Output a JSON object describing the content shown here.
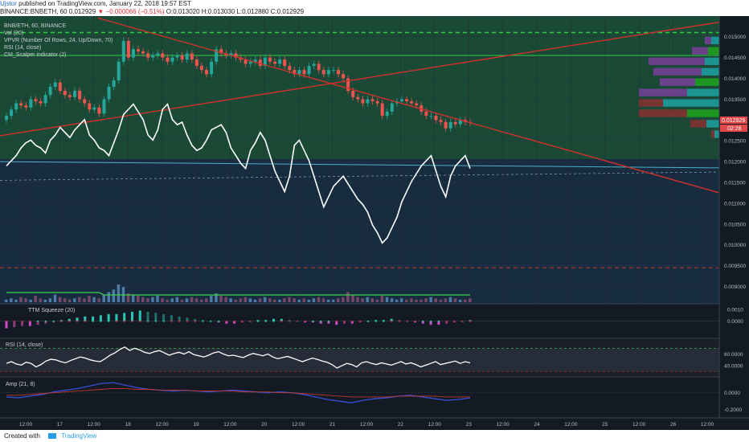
{
  "header": {
    "author": "Ujstor",
    "published_text": "published on TradingView.com, January 22, 2018 19:57 EST",
    "symbol_line_prefix": "BINANCE:BNBETH, 60",
    "last": "0.012929",
    "change": "−0.000066 (−0.51%)",
    "ohlc": "O:0.013020 H:0.013030 L:0.012880 C:0.012929"
  },
  "legend": {
    "symbol": "BNB/ETH, 60, BINANCE",
    "vol": "Vol (20)",
    "vpvr": "VPVR (Number Of Rows, 24, Up/Down, 70)",
    "rsi": "RSI (14, close)",
    "scalper": "CM_Scalper indicator (2)",
    "ttm": "TTM Squeeze (20)",
    "rsi2": "RSI (14, close)",
    "amp": "Amp (21, 8)"
  },
  "price_badges": {
    "last": "0.012929",
    "timer": "02:28"
  },
  "footer": {
    "created_with": "Created with",
    "brand": "TradingView"
  },
  "colors": {
    "candle_up": "#26a69a",
    "candle_down": "#ef5350",
    "rsi_line": "#ffffff",
    "trendline": "#d0312d",
    "dashed_level": "#2ecc40",
    "vpvr_teal": "#1d9c9c",
    "vpvr_purple": "#7b3f9a",
    "vpvr_green": "#1fa01f",
    "panel_bg": "#1c2430"
  },
  "chart_data": [
    {
      "type": "candlestick",
      "title": "BNB/ETH, 60, BINANCE",
      "x_ticks": [
        "12:00",
        "17",
        "12:00",
        "18",
        "12:00",
        "19",
        "12:00",
        "20",
        "12:00",
        "21",
        "12:00",
        "22",
        "12:00",
        "23",
        "12:00",
        "24",
        "12:00",
        "25",
        "12:00",
        "26",
        "12:00"
      ],
      "y_ticks": [
        "0.015000",
        "0.014500",
        "0.014000",
        "0.013500",
        "0.013000",
        "0.012500",
        "0.012000",
        "0.011500",
        "0.011000",
        "0.010500",
        "0.010000",
        "0.009500",
        "0.009000"
      ],
      "ylim": [
        0.0087,
        0.0154
      ],
      "close": [
        0.0131,
        0.01325,
        0.0134,
        0.01335,
        0.0133,
        0.0135,
        0.01345,
        0.0134,
        0.0136,
        0.0138,
        0.0139,
        0.0137,
        0.0136,
        0.01355,
        0.0137,
        0.0135,
        0.0134,
        0.01325,
        0.0133,
        0.01315,
        0.0135,
        0.0138,
        0.01395,
        0.0144,
        0.0149,
        0.0145,
        0.0147,
        0.01465,
        0.0146,
        0.0145,
        0.01455,
        0.0146,
        0.0145,
        0.0144,
        0.0145,
        0.01455,
        0.01445,
        0.0146,
        0.01445,
        0.0143,
        0.0142,
        0.0141,
        0.0144,
        0.0147,
        0.0146,
        0.01455,
        0.0146,
        0.0145,
        0.01445,
        0.01435,
        0.0144,
        0.01445,
        0.0143,
        0.0145,
        0.0144,
        0.01435,
        0.01445,
        0.0143,
        0.0142,
        0.0141,
        0.0142,
        0.0141,
        0.0143,
        0.01435,
        0.0142,
        0.0141,
        0.0142,
        0.0142,
        0.0141,
        0.014,
        0.0137,
        0.01355,
        0.0135,
        0.0134,
        0.0135,
        0.01345,
        0.0134,
        0.0131,
        0.0132,
        0.0134,
        0.01345,
        0.0135,
        0.01345,
        0.0134,
        0.01335,
        0.0132,
        0.0131,
        0.0131,
        0.013,
        0.01295,
        0.0128,
        0.01295,
        0.0129,
        0.013,
        0.01295,
        0.01293
      ],
      "rsi_overlay": [
        48,
        50,
        52,
        55,
        57,
        58,
        56,
        55,
        53,
        58,
        60,
        63,
        61,
        59,
        62,
        64,
        66,
        60,
        58,
        55,
        54,
        52,
        57,
        62,
        68,
        70,
        72,
        69,
        66,
        60,
        58,
        62,
        70,
        72,
        66,
        64,
        65,
        60,
        56,
        54,
        55,
        58,
        62,
        63,
        64,
        61,
        55,
        52,
        49,
        47,
        54,
        57,
        61,
        58,
        52,
        46,
        42,
        38,
        44,
        56,
        58,
        54,
        50,
        44,
        38,
        32,
        36,
        40,
        42,
        44,
        41,
        38,
        35,
        33,
        30,
        25,
        22,
        18,
        20,
        24,
        28,
        34,
        38,
        42,
        45,
        48,
        50,
        52,
        46,
        40,
        36,
        44,
        48,
        50,
        52,
        47
      ],
      "volume": [
        2,
        3,
        2,
        4,
        3,
        2,
        5,
        3,
        2,
        3,
        6,
        4,
        3,
        2,
        3,
        4,
        3,
        5,
        4,
        3,
        6,
        8,
        10,
        14,
        12,
        7,
        6,
        5,
        4,
        3,
        4,
        5,
        3,
        2,
        3,
        4,
        2,
        3,
        4,
        3,
        2,
        3,
        5,
        7,
        5,
        4,
        3,
        2,
        3,
        4,
        3,
        2,
        3,
        4,
        3,
        2,
        2,
        3,
        4,
        3,
        2,
        3,
        2,
        3,
        4,
        3,
        2,
        2,
        3,
        4,
        8,
        6,
        4,
        3,
        4,
        3,
        2,
        5,
        4,
        3,
        2,
        3,
        2,
        3,
        2,
        2,
        3,
        4,
        3,
        2,
        3,
        4,
        3,
        2,
        2,
        3
      ],
      "vpvr_rows": [
        {
          "price": 0.0149,
          "up": 10,
          "down": 8
        },
        {
          "price": 0.01465,
          "up": 14,
          "down": 20
        },
        {
          "price": 0.0144,
          "up": 18,
          "down": 70
        },
        {
          "price": 0.01415,
          "up": 22,
          "down": 60
        },
        {
          "price": 0.0139,
          "up": 30,
          "down": 44
        },
        {
          "price": 0.01365,
          "up": 40,
          "down": 60
        },
        {
          "price": 0.0134,
          "up": 70,
          "down": 30
        },
        {
          "price": 0.01315,
          "up": 40,
          "down": 60
        },
        {
          "price": 0.0129,
          "up": 16,
          "down": 20
        },
        {
          "price": 0.01265,
          "up": 6,
          "down": 4
        }
      ],
      "levels": [
        0.0151,
        0.01455,
        0.00945
      ],
      "trendlines": [
        {
          "from": [
            0,
            0.01262
          ],
          "to": [
            220,
            0.01535
          ]
        },
        {
          "from": [
            30,
            0.01545
          ],
          "to": [
            220,
            0.01125
          ]
        }
      ]
    },
    {
      "type": "histogram",
      "title": "TTM Squeeze (20)",
      "y_ticks": [
        "0.0010",
        "0.0000"
      ],
      "ylim": [
        -0.0011,
        0.0012
      ],
      "values": [
        -0.0006,
        -0.0005,
        -0.0004,
        -0.0004,
        -0.0003,
        -0.0002,
        -0.0001,
        0.0001,
        0.0002,
        0.0003,
        0.0004,
        0.0004,
        0.0005,
        0.0006,
        0.0006,
        0.0007,
        0.0008,
        0.0009,
        0.0008,
        0.0007,
        0.0006,
        0.0005,
        0.0004,
        0.0003,
        0.0002,
        0.0001,
        0.0,
        -0.0001,
        -0.0002,
        -0.0002,
        -0.0001,
        0.0,
        0.0001,
        0.0001,
        0.0002,
        0.0002,
        0.0001,
        0.0,
        -0.0001,
        -0.0001,
        -0.0002,
        -0.0002,
        -0.0003,
        -0.0002,
        -0.0002,
        -0.0001,
        0.0,
        0.0001,
        0.0001,
        0.0002,
        0.0001,
        0.0,
        -0.0001,
        -0.0002,
        -0.0003,
        -0.0003,
        -0.0002,
        -0.0001,
        0.0,
        0.0001
      ]
    },
    {
      "type": "line",
      "title": "RSI (14, close)",
      "y_ticks": [
        "60.0000",
        "40.0000"
      ],
      "ylim": [
        25,
        80
      ],
      "values": [
        44,
        47,
        43,
        41,
        46,
        44,
        38,
        42,
        48,
        51,
        50,
        47,
        45,
        49,
        52,
        55,
        53,
        50,
        48,
        47,
        52,
        58,
        62,
        68,
        72,
        66,
        70,
        67,
        63,
        61,
        64,
        66,
        62,
        58,
        61,
        63,
        60,
        64,
        59,
        57,
        55,
        58,
        62,
        64,
        60,
        57,
        58,
        56,
        54,
        58,
        61,
        59,
        57,
        60,
        55,
        52,
        54,
        56,
        53,
        50,
        47,
        50,
        53,
        51,
        48,
        46,
        42,
        36,
        40,
        44,
        42,
        38,
        45,
        47,
        44,
        42,
        45,
        43,
        41,
        44,
        47,
        43,
        45,
        42,
        38,
        41,
        44,
        47,
        42,
        44,
        46,
        48,
        44,
        47,
        45
      ]
    },
    {
      "type": "line",
      "title": "Amp (21, 8)",
      "y_ticks": [
        "0.0000",
        "-0.2000"
      ],
      "ylim": [
        -0.26,
        0.14
      ],
      "series": [
        {
          "values": [
            -0.05,
            -0.06,
            -0.04,
            -0.02,
            0.01,
            0.03,
            0.05,
            0.08,
            0.11,
            0.12,
            0.09,
            0.06,
            0.04,
            0.03,
            0.02,
            0.03,
            0.02,
            0.01,
            0.02,
            0.03,
            0.02,
            0.01,
            0.0,
            0.01,
            0.0,
            -0.02,
            -0.05,
            -0.08,
            -0.1,
            -0.12,
            -0.09,
            -0.07,
            -0.06,
            -0.04,
            -0.03,
            -0.05,
            -0.07,
            -0.09,
            -0.08,
            -0.06
          ]
        },
        {
          "values": [
            -0.03,
            -0.03,
            -0.02,
            -0.01,
            0.0,
            0.01,
            0.02,
            0.03,
            0.04,
            0.05,
            0.05,
            0.04,
            0.04,
            0.03,
            0.03,
            0.03,
            0.02,
            0.02,
            0.02,
            0.02,
            0.01,
            0.01,
            0.01,
            0.0,
            0.0,
            -0.01,
            -0.02,
            -0.03,
            -0.04,
            -0.05,
            -0.05,
            -0.05,
            -0.05,
            -0.04,
            -0.04,
            -0.04,
            -0.04,
            -0.05,
            -0.05,
            -0.05
          ]
        }
      ]
    }
  ]
}
